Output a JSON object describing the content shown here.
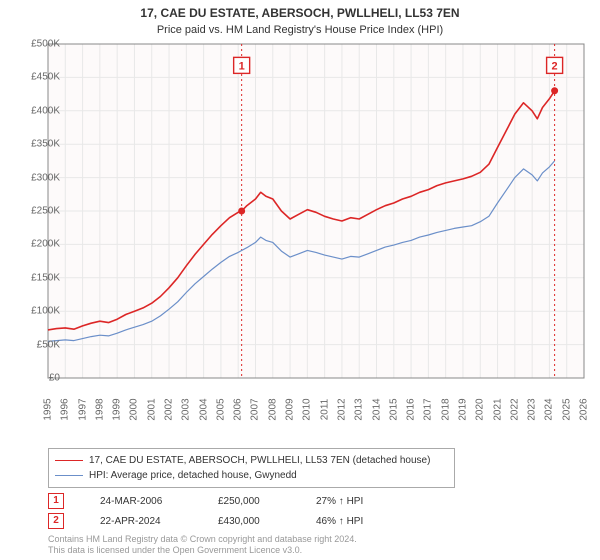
{
  "title": "17, CAE DU ESTATE, ABERSOCH, PWLLHELI, LL53 7EN",
  "subtitle": "Price paid vs. HM Land Registry's House Price Index (HPI)",
  "chart": {
    "type": "line",
    "background_color": "#ffffff",
    "plot_tint_color": "#fdfafa",
    "grid_color": "#e8e8e8",
    "axis_color": "#888888",
    "label_color": "#666666",
    "label_fontsize": 10,
    "title_fontsize": 12,
    "x_years": [
      1995,
      1996,
      1997,
      1998,
      1999,
      2000,
      2001,
      2002,
      2003,
      2004,
      2005,
      2006,
      2007,
      2008,
      2009,
      2010,
      2011,
      2012,
      2013,
      2014,
      2015,
      2016,
      2017,
      2018,
      2019,
      2020,
      2021,
      2022,
      2023,
      2024,
      2025,
      2026
    ],
    "xlim": [
      1995,
      2026
    ],
    "ylim": [
      0,
      500000
    ],
    "ytick_step": 50000,
    "y_tick_labels": [
      "£0",
      "£50K",
      "£100K",
      "£150K",
      "£200K",
      "£250K",
      "£300K",
      "£350K",
      "£400K",
      "£450K",
      "£500K"
    ],
    "series": [
      {
        "id": "price_paid",
        "label": "17, CAE DU ESTATE, ABERSOCH, PWLLHELI, LL53 7EN (detached house)",
        "color": "#dc2626",
        "line_width": 1.6,
        "data": [
          [
            1995,
            72000
          ],
          [
            1995.5,
            74000
          ],
          [
            1996,
            75000
          ],
          [
            1996.5,
            73000
          ],
          [
            1997,
            78000
          ],
          [
            1997.5,
            82000
          ],
          [
            1998,
            85000
          ],
          [
            1998.5,
            83000
          ],
          [
            1999,
            88000
          ],
          [
            1999.5,
            95000
          ],
          [
            2000,
            100000
          ],
          [
            2000.5,
            105000
          ],
          [
            2001,
            112000
          ],
          [
            2001.5,
            122000
          ],
          [
            2002,
            135000
          ],
          [
            2002.5,
            150000
          ],
          [
            2003,
            168000
          ],
          [
            2003.5,
            185000
          ],
          [
            2004,
            200000
          ],
          [
            2004.5,
            215000
          ],
          [
            2005,
            228000
          ],
          [
            2005.5,
            240000
          ],
          [
            2006,
            248000
          ],
          [
            2006.2,
            250000
          ],
          [
            2006.5,
            258000
          ],
          [
            2007,
            268000
          ],
          [
            2007.3,
            278000
          ],
          [
            2007.6,
            272000
          ],
          [
            2008,
            268000
          ],
          [
            2008.5,
            250000
          ],
          [
            2009,
            238000
          ],
          [
            2009.5,
            245000
          ],
          [
            2010,
            252000
          ],
          [
            2010.5,
            248000
          ],
          [
            2011,
            242000
          ],
          [
            2011.5,
            238000
          ],
          [
            2012,
            235000
          ],
          [
            2012.5,
            240000
          ],
          [
            2013,
            238000
          ],
          [
            2013.5,
            245000
          ],
          [
            2014,
            252000
          ],
          [
            2014.5,
            258000
          ],
          [
            2015,
            262000
          ],
          [
            2015.5,
            268000
          ],
          [
            2016,
            272000
          ],
          [
            2016.5,
            278000
          ],
          [
            2017,
            282000
          ],
          [
            2017.5,
            288000
          ],
          [
            2018,
            292000
          ],
          [
            2018.5,
            295000
          ],
          [
            2019,
            298000
          ],
          [
            2019.5,
            302000
          ],
          [
            2020,
            308000
          ],
          [
            2020.5,
            320000
          ],
          [
            2021,
            345000
          ],
          [
            2021.5,
            370000
          ],
          [
            2022,
            395000
          ],
          [
            2022.5,
            412000
          ],
          [
            2023,
            400000
          ],
          [
            2023.3,
            388000
          ],
          [
            2023.6,
            405000
          ],
          [
            2024,
            418000
          ],
          [
            2024.3,
            430000
          ]
        ]
      },
      {
        "id": "hpi",
        "label": "HPI: Average price, detached house, Gwynedd",
        "color": "#6b8fc9",
        "line_width": 1.2,
        "data": [
          [
            1995,
            55000
          ],
          [
            1995.5,
            56000
          ],
          [
            1996,
            57000
          ],
          [
            1996.5,
            56000
          ],
          [
            1997,
            59000
          ],
          [
            1997.5,
            62000
          ],
          [
            1998,
            64000
          ],
          [
            1998.5,
            63000
          ],
          [
            1999,
            67000
          ],
          [
            1999.5,
            72000
          ],
          [
            2000,
            76000
          ],
          [
            2000.5,
            80000
          ],
          [
            2001,
            85000
          ],
          [
            2001.5,
            93000
          ],
          [
            2002,
            103000
          ],
          [
            2002.5,
            114000
          ],
          [
            2003,
            128000
          ],
          [
            2003.5,
            141000
          ],
          [
            2004,
            152000
          ],
          [
            2004.5,
            163000
          ],
          [
            2005,
            173000
          ],
          [
            2005.5,
            182000
          ],
          [
            2006,
            188000
          ],
          [
            2006.5,
            195000
          ],
          [
            2007,
            203000
          ],
          [
            2007.3,
            211000
          ],
          [
            2007.6,
            206000
          ],
          [
            2008,
            203000
          ],
          [
            2008.5,
            190000
          ],
          [
            2009,
            181000
          ],
          [
            2009.5,
            186000
          ],
          [
            2010,
            191000
          ],
          [
            2010.5,
            188000
          ],
          [
            2011,
            184000
          ],
          [
            2011.5,
            181000
          ],
          [
            2012,
            178000
          ],
          [
            2012.5,
            182000
          ],
          [
            2013,
            181000
          ],
          [
            2013.5,
            186000
          ],
          [
            2014,
            191000
          ],
          [
            2014.5,
            196000
          ],
          [
            2015,
            199000
          ],
          [
            2015.5,
            203000
          ],
          [
            2016,
            206000
          ],
          [
            2016.5,
            211000
          ],
          [
            2017,
            214000
          ],
          [
            2017.5,
            218000
          ],
          [
            2018,
            221000
          ],
          [
            2018.5,
            224000
          ],
          [
            2019,
            226000
          ],
          [
            2019.5,
            228000
          ],
          [
            2020,
            234000
          ],
          [
            2020.5,
            242000
          ],
          [
            2021,
            262000
          ],
          [
            2021.5,
            281000
          ],
          [
            2022,
            300000
          ],
          [
            2022.5,
            313000
          ],
          [
            2023,
            304000
          ],
          [
            2023.3,
            295000
          ],
          [
            2023.6,
            307000
          ],
          [
            2024,
            316000
          ],
          [
            2024.3,
            325000
          ]
        ]
      }
    ],
    "markers": [
      {
        "n": "1",
        "x": 2006.2,
        "y": 250000,
        "color": "#dc2626",
        "box_y": 468000
      },
      {
        "n": "2",
        "x": 2024.3,
        "y": 430000,
        "color": "#dc2626",
        "box_y": 468000
      }
    ]
  },
  "legend": {
    "border_color": "#aaaaaa",
    "fontsize": 10
  },
  "annotations": [
    {
      "n": "1",
      "date": "24-MAR-2006",
      "price": "£250,000",
      "pct": "27% ↑ HPI",
      "color": "#dc2626"
    },
    {
      "n": "2",
      "date": "22-APR-2024",
      "price": "£430,000",
      "pct": "46% ↑ HPI",
      "color": "#dc2626"
    }
  ],
  "footer": {
    "line1": "Contains HM Land Registry data © Crown copyright and database right 2024.",
    "line2": "This data is licensed under the Open Government Licence v3.0.",
    "color": "#999999",
    "fontsize": 9
  }
}
